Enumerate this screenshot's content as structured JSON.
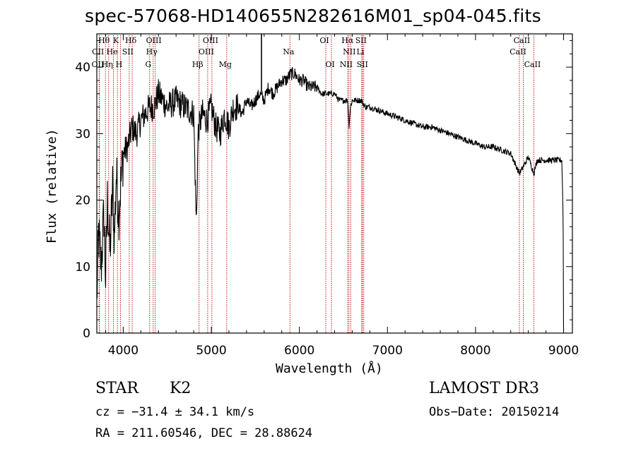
{
  "title": "spec-57068-HD140655N282616M01_sp04-045.fits",
  "chart_data": {
    "type": "line",
    "title": "spec-57068-HD140655N282616M01_sp04-045.fits",
    "xlabel": "Wavelength (Å)",
    "ylabel": "Flux (relative)",
    "xlim": [
      3700,
      9100
    ],
    "ylim": [
      0,
      45
    ],
    "xticks": [
      4000,
      5000,
      6000,
      7000,
      8000,
      9000
    ],
    "yticks": [
      0,
      10,
      20,
      30,
      40
    ],
    "spectrum_outline": {
      "x": [
        3700,
        3720,
        3750,
        3780,
        3800,
        3820,
        3850,
        3880,
        3900,
        3920,
        3950,
        3970,
        4000,
        4050,
        4100,
        4150,
        4200,
        4250,
        4300,
        4350,
        4400,
        4450,
        4500,
        4600,
        4700,
        4800,
        4830,
        4850,
        4860,
        4900,
        4950,
        5000,
        5050,
        5100,
        5150,
        5200,
        5250,
        5300,
        5350,
        5400,
        5450,
        5500,
        5550,
        5600,
        5650,
        5700,
        5750,
        5800,
        5850,
        5900,
        5950,
        6000,
        6050,
        6100,
        6150,
        6200,
        6250,
        6300,
        6350,
        6400,
        6450,
        6500,
        6550,
        6563,
        6580,
        6600,
        6650,
        6700,
        6750,
        6800,
        6900,
        7000,
        7100,
        7200,
        7300,
        7400,
        7500,
        7600,
        7700,
        7800,
        7900,
        8000,
        8100,
        8200,
        8300,
        8400,
        8498,
        8542,
        8600,
        8662,
        8700,
        8750,
        8800,
        8850,
        8900,
        8950,
        8980,
        8995,
        9000
      ],
      "y": [
        5,
        15,
        10,
        18,
        8,
        20,
        12,
        22,
        14,
        24,
        18,
        22,
        27,
        28,
        31,
        30,
        32,
        33,
        34,
        34,
        36,
        35,
        34,
        35,
        34,
        33,
        16,
        30,
        31,
        33,
        32,
        34,
        31,
        30,
        33,
        31,
        34,
        34,
        33,
        35,
        34,
        35,
        36,
        35,
        37,
        36,
        37,
        38,
        38,
        39,
        39,
        38,
        38,
        37,
        37,
        37,
        36,
        36,
        36,
        36,
        35,
        35,
        35,
        31,
        34,
        35,
        35,
        35,
        34,
        34,
        33.5,
        33,
        32.5,
        32,
        31.5,
        31,
        31,
        30.5,
        30,
        29.5,
        29,
        28.5,
        28,
        28,
        27.5,
        27,
        24,
        25,
        26.5,
        24,
        26,
        26,
        26,
        26,
        26,
        26,
        26,
        18,
        0
      ]
    },
    "spectral_lines": [
      {
        "label": "Hθ",
        "x": 3798,
        "row": 1
      },
      {
        "label": "K",
        "x": 3934,
        "row": 1
      },
      {
        "label": "Hδ",
        "x": 4102,
        "row": 1
      },
      {
        "label": "OIII",
        "x": 4363,
        "row": 1
      },
      {
        "label": "OIII",
        "x": 5007,
        "row": 1
      },
      {
        "label": "OI",
        "x": 6300,
        "row": 1
      },
      {
        "label": "Hα",
        "x": 6563,
        "row": 1
      },
      {
        "label": "SII",
        "x": 6716,
        "row": 1
      },
      {
        "label": "CaII",
        "x": 8542,
        "row": 1
      },
      {
        "label": "CII",
        "x": 3730,
        "row": 2
      },
      {
        "label": "He",
        "x": 3889,
        "row": 2
      },
      {
        "label": "SII",
        "x": 4068,
        "row": 2
      },
      {
        "label": "Hγ",
        "x": 4340,
        "row": 2
      },
      {
        "label": "OIII",
        "x": 4959,
        "row": 2
      },
      {
        "label": "Na",
        "x": 5893,
        "row": 2
      },
      {
        "label": "NII",
        "x": 6583,
        "row": 2
      },
      {
        "label": "Li",
        "x": 6708,
        "row": 2
      },
      {
        "label": "CaII",
        "x": 8498,
        "row": 2
      },
      {
        "label": "OII",
        "x": 3727,
        "row": 3
      },
      {
        "label": "Hη",
        "x": 3835,
        "row": 3
      },
      {
        "label": "H",
        "x": 3968,
        "row": 3
      },
      {
        "label": "G",
        "x": 4300,
        "row": 3
      },
      {
        "label": "Hβ",
        "x": 4861,
        "row": 3
      },
      {
        "label": "Mg",
        "x": 5175,
        "row": 3
      },
      {
        "label": "OI",
        "x": 6364,
        "row": 3
      },
      {
        "label": "NII",
        "x": 6548,
        "row": 3
      },
      {
        "label": "SII",
        "x": 6731,
        "row": 3
      },
      {
        "label": "CaII",
        "x": 8662,
        "row": 3
      }
    ]
  },
  "info": {
    "class_label": "STAR",
    "subclass": "K2",
    "survey": "LAMOST DR3",
    "cz": "cz = −31.4 ± 34.1 km/s",
    "obs_date": "Obs−Date: 20150214",
    "coords": "RA = 211.60546, DEC =  28.88624"
  }
}
